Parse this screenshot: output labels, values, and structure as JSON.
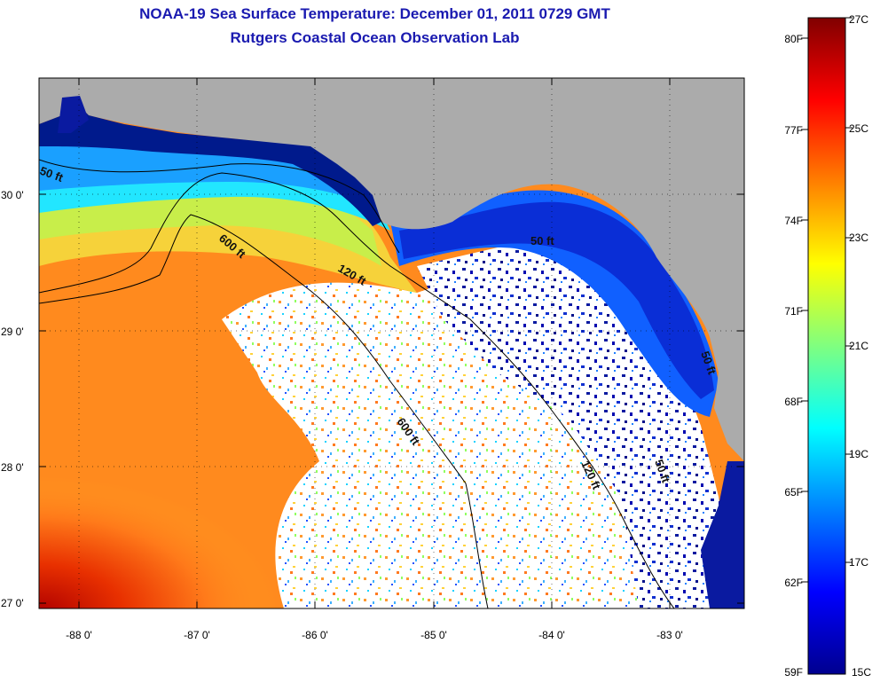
{
  "title": "NOAA-19 Sea Surface Temperature:  December 01, 2011 0729 GMT",
  "subtitle": "Rutgers Coastal Ocean Observation Lab",
  "map": {
    "lat_ticks": [
      "30 0'",
      "29 0'",
      "28 0'",
      "27 0'"
    ],
    "lon_ticks": [
      "-88 0'",
      "-87 0'",
      "-86 0'",
      "-85 0'",
      "-84 0'",
      "-83 0'"
    ],
    "contours": [
      {
        "label": "600 ft",
        "depth_ft": 600
      },
      {
        "label": "600 ft",
        "depth_ft": 600
      },
      {
        "label": "120 ft",
        "depth_ft": 120
      },
      {
        "label": "120 ft",
        "depth_ft": 120
      },
      {
        "label": "50 ft",
        "depth_ft": 50
      },
      {
        "label": "50 ft",
        "depth_ft": 50
      },
      {
        "label": "50 ft",
        "depth_ft": 50
      },
      {
        "label": "50 ft",
        "depth_ft": 50
      }
    ],
    "colors": {
      "land": "#ababab",
      "cloud": "#ffffff",
      "frame": "#000000"
    }
  },
  "colorbar": {
    "fahrenheit": [
      "80F",
      "77F",
      "74F",
      "71F",
      "68F",
      "65F",
      "62F",
      "59F"
    ],
    "celsius": [
      "27C",
      "25C",
      "23C",
      "21C",
      "19C",
      "17C",
      "15C"
    ],
    "range_c": [
      15,
      27
    ]
  }
}
